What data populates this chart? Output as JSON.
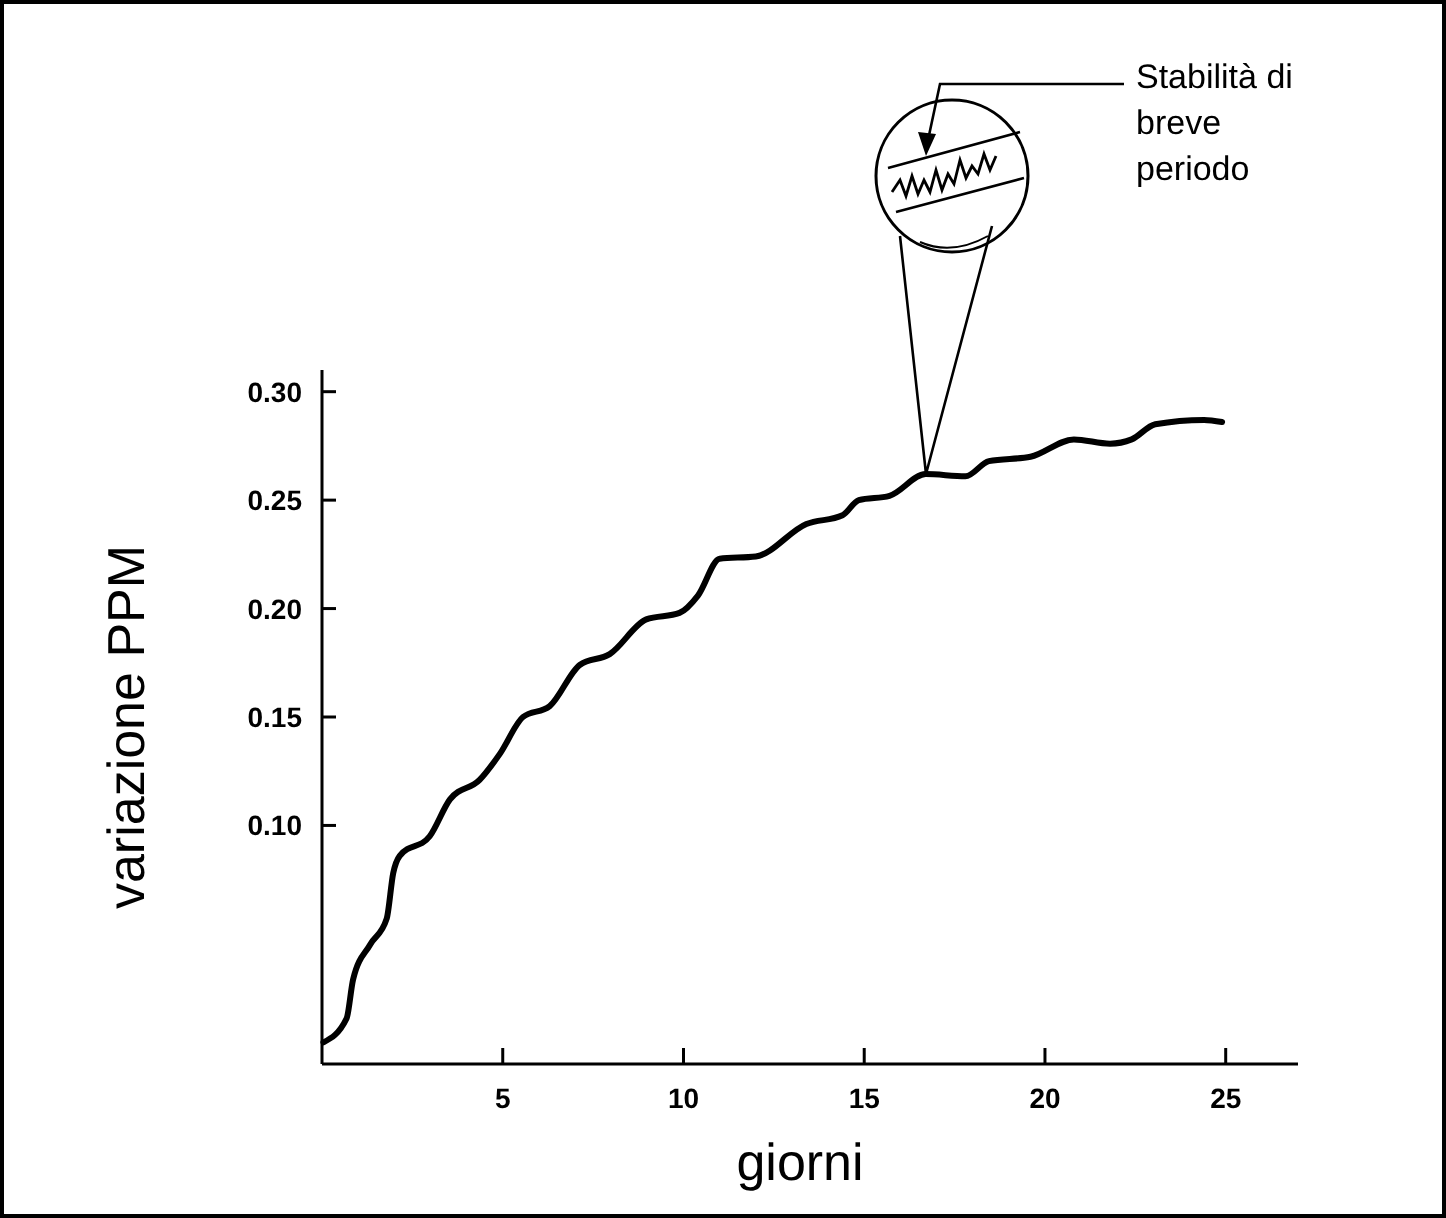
{
  "chart_data": {
    "type": "line",
    "xlabel": "giorni",
    "ylabel": "variazione PPM",
    "x": [
      0.04,
      0.68,
      0.86,
      1.33,
      1.79,
      1.97,
      2.15,
      2.98,
      3.54,
      4.36,
      4.92,
      5.56,
      6.3,
      7.13,
      7.96,
      8.97,
      9.89,
      10.4,
      11.0,
      12.0,
      13.4,
      14.4,
      14.85,
      15.7,
      16.7,
      17.8,
      18.45,
      19.6,
      20.8,
      21.8,
      22.4,
      23.05,
      24.4,
      24.9
    ],
    "series": [
      {
        "color": "#000000",
        "values": [
          0.0,
          0.011,
          0.029,
          0.045,
          0.057,
          0.078,
          0.086,
          0.095,
          0.112,
          0.121,
          0.133,
          0.15,
          0.155,
          0.174,
          0.179,
          0.195,
          0.198,
          0.206,
          0.223,
          0.224,
          0.239,
          0.243,
          0.25,
          0.252,
          0.262,
          0.261,
          0.268,
          0.27,
          0.278,
          0.276,
          0.278,
          0.285,
          0.287,
          0.286
        ]
      }
    ],
    "xlim": [
      0,
      27
    ],
    "ylim": [
      -0.01,
      0.31
    ],
    "xticks": [
      5,
      10,
      15,
      20,
      25
    ],
    "yticks": [
      {
        "value": 0.1,
        "label": "0.10"
      },
      {
        "value": 0.15,
        "label": "0.15"
      },
      {
        "value": 0.2,
        "label": "0.20"
      },
      {
        "value": 0.25,
        "label": "0.25"
      },
      {
        "value": 0.3,
        "label": "0.30"
      }
    ],
    "annotations": [
      "Stabilità di breve periodo"
    ],
    "grid": false,
    "marker": "none",
    "line_style": "solid"
  }
}
